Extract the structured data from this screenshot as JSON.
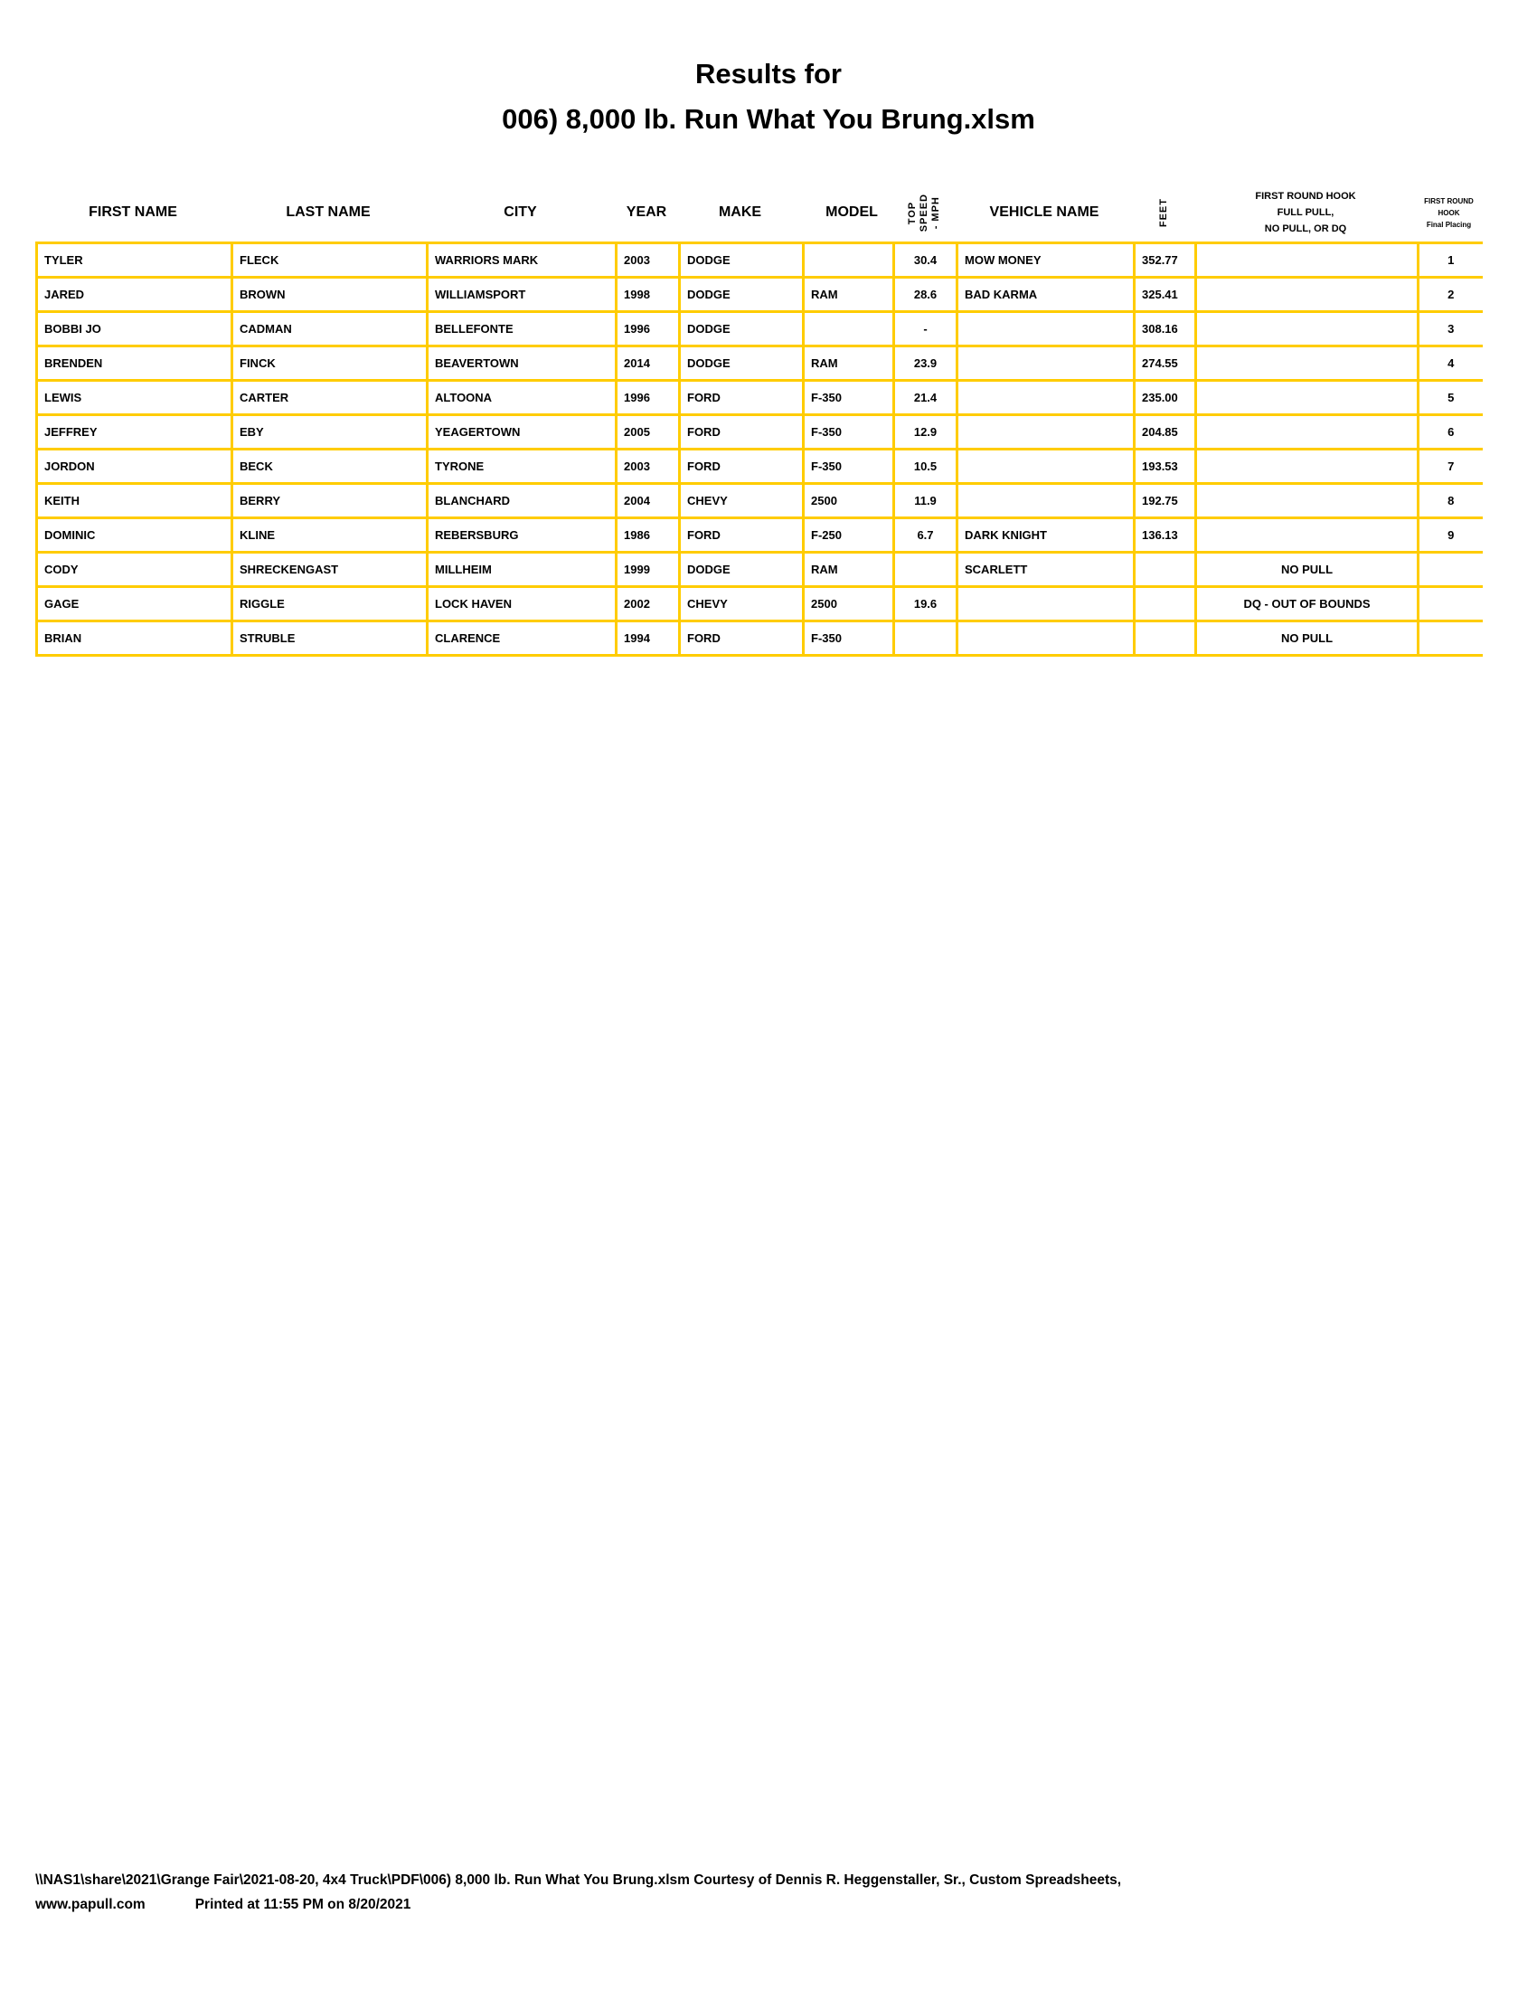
{
  "title": {
    "line1": "Results for",
    "line2": "006) 8,000 lb. Run What You Brung.xlsm"
  },
  "columns": {
    "first_name": "FIRST NAME",
    "last_name": "LAST NAME",
    "city": "CITY",
    "year": "YEAR",
    "make": "MAKE",
    "model": "MODEL",
    "top_speed": [
      "TOP",
      "SPEED",
      "- MPH"
    ],
    "vehicle_name": "VEHICLE NAME",
    "feet": "FEET",
    "hook": [
      "FIRST ROUND HOOK",
      "FULL PULL,",
      "NO PULL, OR DQ"
    ],
    "placing": [
      "FIRST ROUND",
      "HOOK",
      "Final Placing"
    ]
  },
  "rows": [
    {
      "first": "TYLER",
      "last": "FLECK",
      "city": "WARRIORS MARK",
      "year": "2003",
      "make": "DODGE",
      "model": "",
      "speed": "30.4",
      "vehicle": "MOW MONEY",
      "feet": "352.77",
      "hook": "",
      "place": "1"
    },
    {
      "first": "JARED",
      "last": "BROWN",
      "city": "WILLIAMSPORT",
      "year": "1998",
      "make": "DODGE",
      "model": "RAM",
      "speed": "28.6",
      "vehicle": "BAD KARMA",
      "feet": "325.41",
      "hook": "",
      "place": "2"
    },
    {
      "first": "BOBBI JO",
      "last": "CADMAN",
      "city": "BELLEFONTE",
      "year": "1996",
      "make": "DODGE",
      "model": "",
      "speed": "-",
      "vehicle": "",
      "feet": "308.16",
      "hook": "",
      "place": "3"
    },
    {
      "first": "BRENDEN",
      "last": "FINCK",
      "city": "BEAVERTOWN",
      "year": "2014",
      "make": "DODGE",
      "model": "RAM",
      "speed": "23.9",
      "vehicle": "",
      "feet": "274.55",
      "hook": "",
      "place": "4"
    },
    {
      "first": "LEWIS",
      "last": "CARTER",
      "city": "ALTOONA",
      "year": "1996",
      "make": "FORD",
      "model": "F-350",
      "speed": "21.4",
      "vehicle": "",
      "feet": "235.00",
      "hook": "",
      "place": "5"
    },
    {
      "first": "JEFFREY",
      "last": "EBY",
      "city": "YEAGERTOWN",
      "year": "2005",
      "make": "FORD",
      "model": "F-350",
      "speed": "12.9",
      "vehicle": "",
      "feet": "204.85",
      "hook": "",
      "place": "6"
    },
    {
      "first": "JORDON",
      "last": "BECK",
      "city": "TYRONE",
      "year": "2003",
      "make": "FORD",
      "model": "F-350",
      "speed": "10.5",
      "vehicle": "",
      "feet": "193.53",
      "hook": "",
      "place": "7"
    },
    {
      "first": "KEITH",
      "last": "BERRY",
      "city": "BLANCHARD",
      "year": "2004",
      "make": "CHEVY",
      "model": "2500",
      "speed": "11.9",
      "vehicle": "",
      "feet": "192.75",
      "hook": "",
      "place": "8"
    },
    {
      "first": "DOMINIC",
      "last": "KLINE",
      "city": "REBERSBURG",
      "year": "1986",
      "make": "FORD",
      "model": "F-250",
      "speed": "6.7",
      "vehicle": "DARK KNIGHT",
      "feet": "136.13",
      "hook": "",
      "place": "9"
    },
    {
      "first": "CODY",
      "last": "SHRECKENGAST",
      "city": "MILLHEIM",
      "year": "1999",
      "make": "DODGE",
      "model": "RAM",
      "speed": "",
      "vehicle": "SCARLETT",
      "feet": "",
      "hook": "NO PULL",
      "place": ""
    },
    {
      "first": "GAGE",
      "last": "RIGGLE",
      "city": "LOCK HAVEN",
      "year": "2002",
      "make": "CHEVY",
      "model": "2500",
      "speed": "19.6",
      "vehicle": "",
      "feet": "",
      "hook": "DQ - OUT OF BOUNDS",
      "place": ""
    },
    {
      "first": "BRIAN",
      "last": "STRUBLE",
      "city": "CLARENCE",
      "year": "1994",
      "make": "FORD",
      "model": "F-350",
      "speed": "",
      "vehicle": "",
      "feet": "",
      "hook": "NO PULL",
      "place": ""
    }
  ],
  "colors": {
    "grid": "#ffcc00"
  },
  "footer": {
    "line1": "\\\\NAS1\\share\\2021\\Grange Fair\\2021-08-20, 4x4 Truck\\PDF\\006) 8,000 lb. Run What You Brung.xlsm  Courtesy of Dennis R. Heggenstaller, Sr., Custom Spreadsheets,",
    "site": "www.papull.com",
    "printed": "Printed at 11:55 PM on 8/20/2021"
  }
}
